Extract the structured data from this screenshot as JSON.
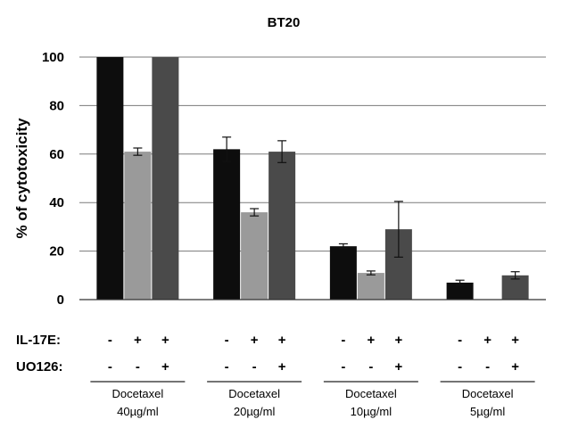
{
  "chart_data": {
    "type": "bar",
    "title": "BT20",
    "ylabel": "% of cytotoxicity",
    "ylim": [
      0,
      100
    ],
    "yticks": [
      0,
      20,
      40,
      60,
      80,
      100
    ],
    "grid": true,
    "groups": [
      {
        "name": "Docetaxel",
        "dose": "40µg/ml"
      },
      {
        "name": "Docetaxel",
        "dose": "20µg/ml"
      },
      {
        "name": "Docetaxel",
        "dose": "10µg/ml"
      },
      {
        "name": "Docetaxel",
        "dose": "5µg/ml"
      }
    ],
    "conditions": [
      {
        "label": "IL-17E:",
        "signs": [
          "-",
          "+",
          "+"
        ]
      },
      {
        "label": "UO126:",
        "signs": [
          "-",
          "-",
          "+"
        ]
      }
    ],
    "series": [
      {
        "color": "#0d0d0d",
        "values": [
          100,
          62,
          22,
          7
        ],
        "errors": [
          null,
          5,
          1,
          1
        ]
      },
      {
        "color": "#9a9a9a",
        "values": [
          61,
          36,
          11,
          0
        ],
        "errors": [
          1.5,
          1.5,
          0.8,
          null
        ]
      },
      {
        "color": "#4a4a4a",
        "values": [
          100,
          61,
          29,
          10
        ],
        "errors": [
          null,
          4.5,
          11.5,
          1.5
        ]
      }
    ]
  }
}
